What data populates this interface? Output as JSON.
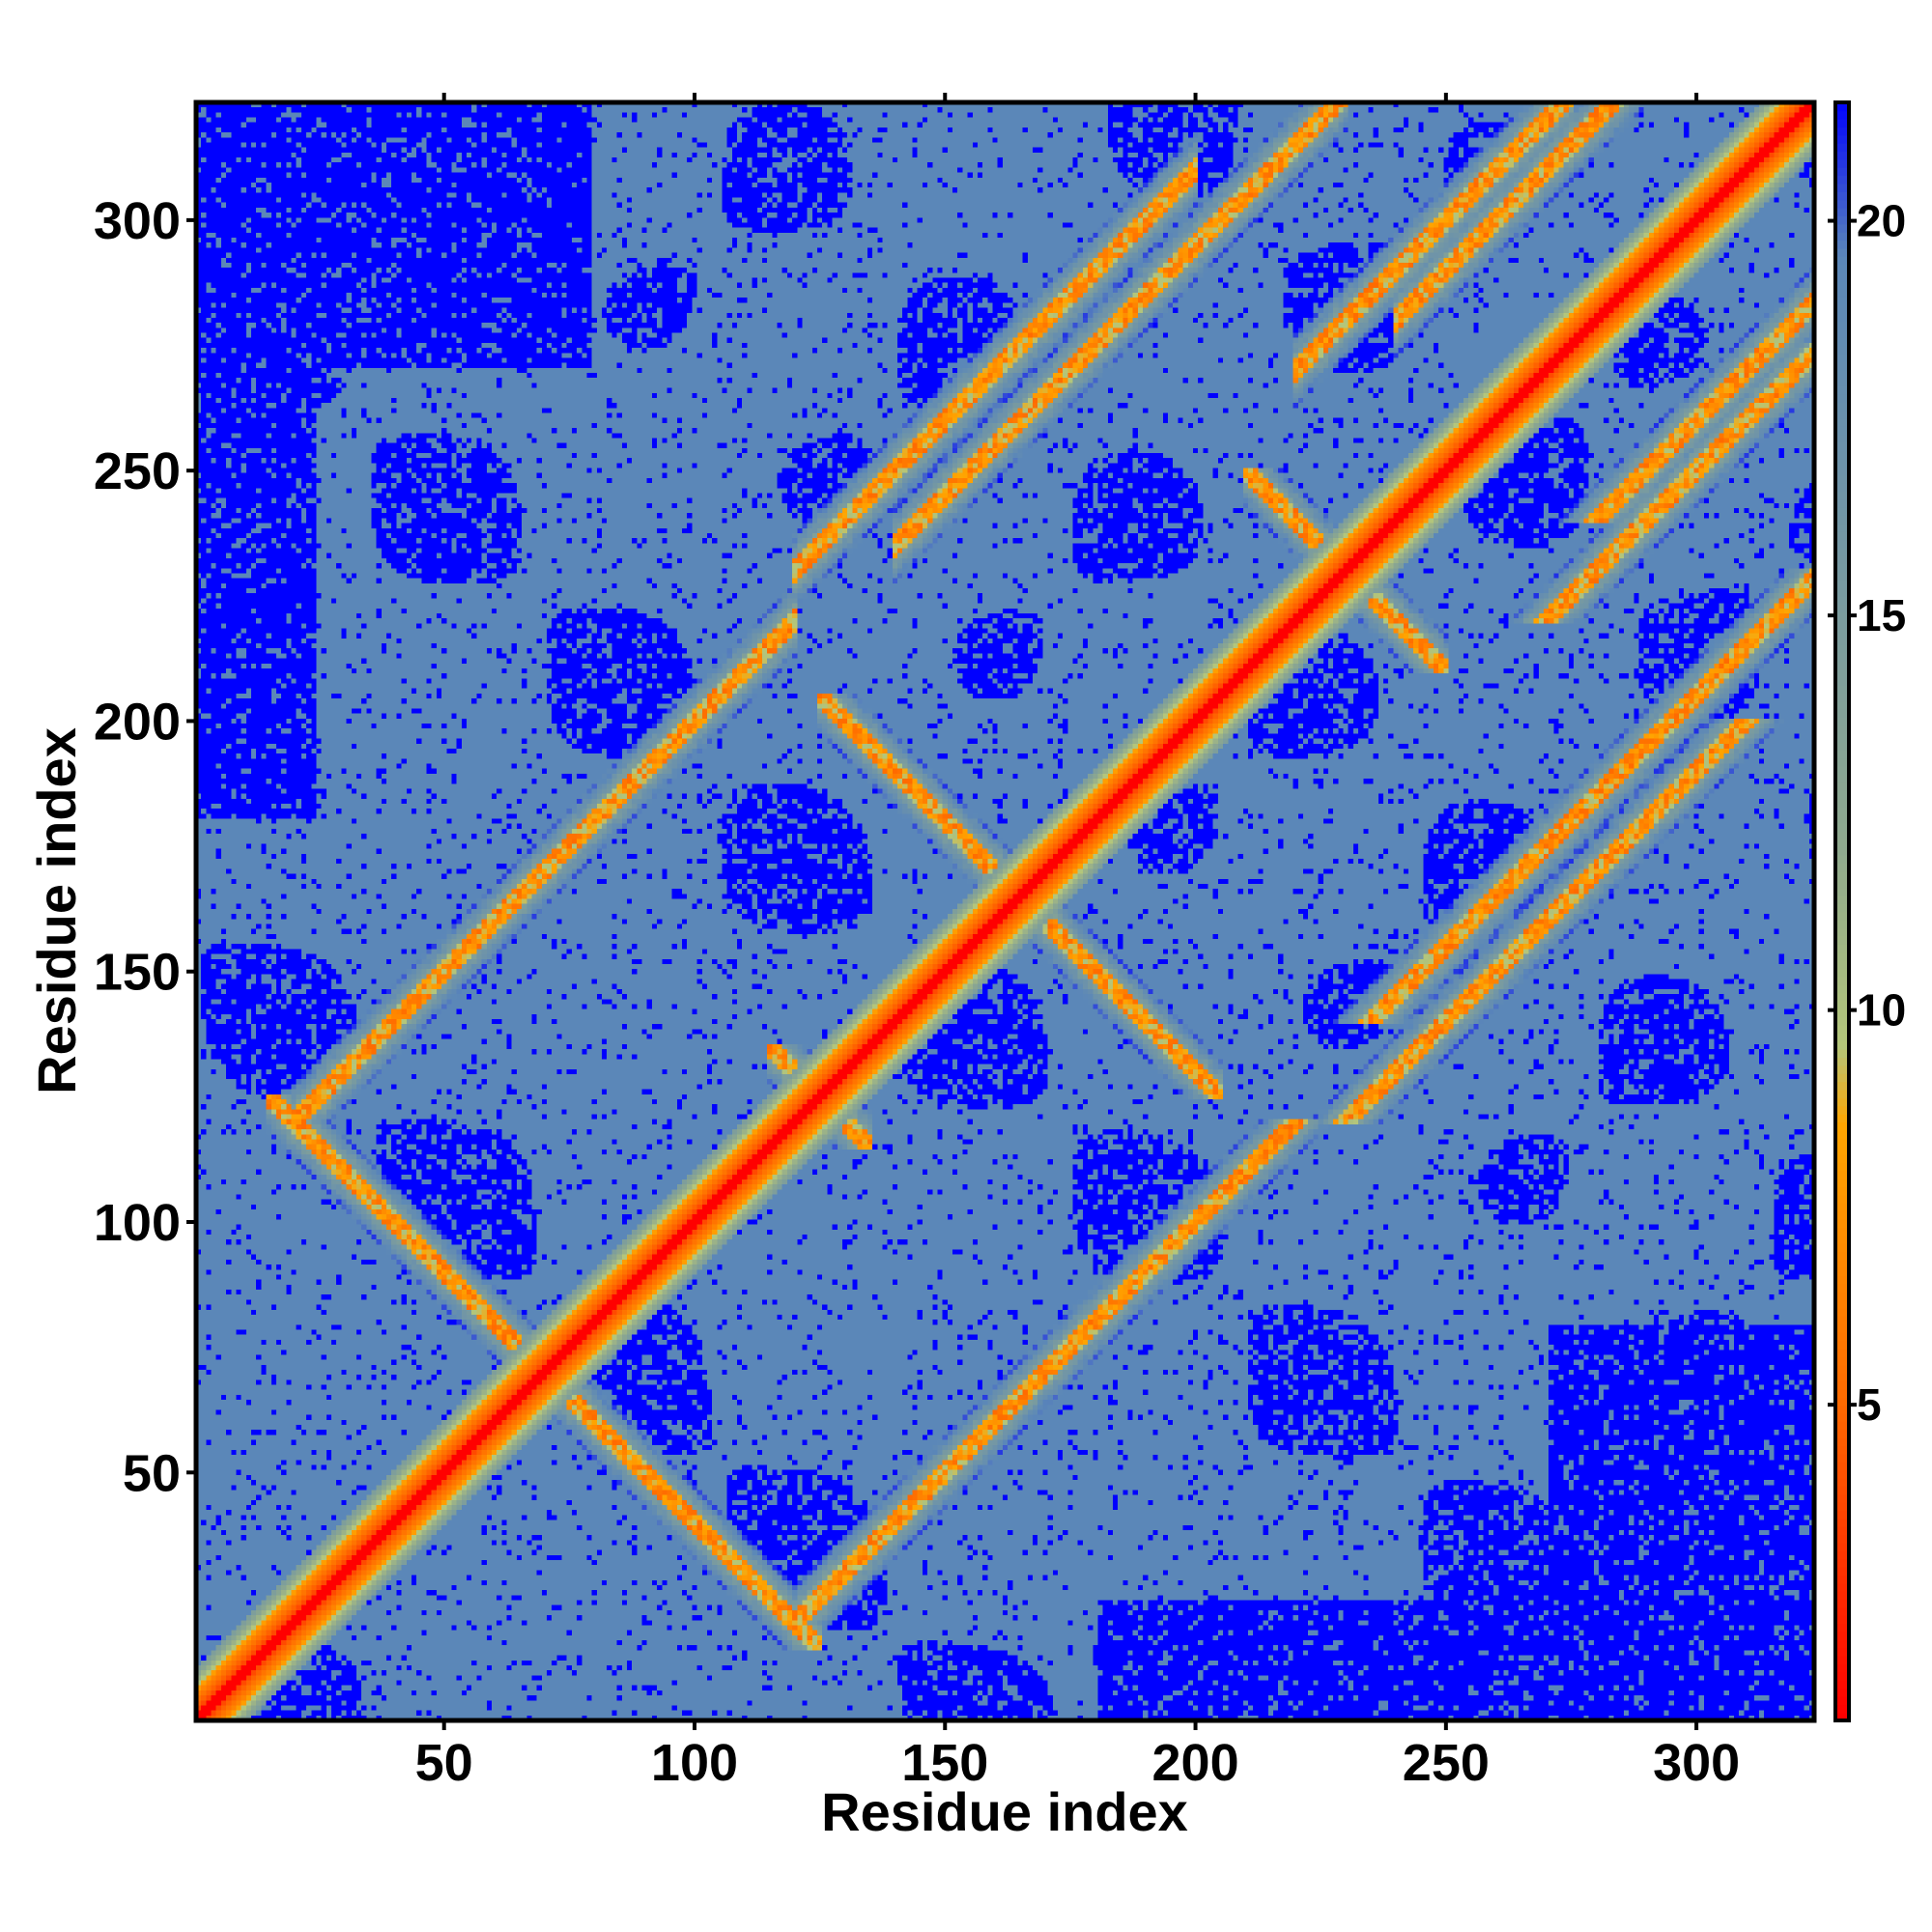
{
  "chart_data": {
    "type": "heatmap",
    "title": "",
    "xlabel": "Residue index",
    "ylabel": "Residue index",
    "xlim": [
      1,
      323
    ],
    "ylim": [
      1,
      323
    ],
    "x_ticks": [
      50,
      100,
      150,
      200,
      250,
      300
    ],
    "y_ticks": [
      50,
      100,
      150,
      200,
      250,
      300
    ],
    "colorbar": {
      "range": [
        1,
        21.5
      ],
      "ticks": [
        5,
        10,
        15,
        20
      ],
      "colors": [
        {
          "value": 1,
          "color": "#ff0000"
        },
        {
          "value": 5,
          "color": "#ff6a00"
        },
        {
          "value": 8.5,
          "color": "#ffa500"
        },
        {
          "value": 9.5,
          "color": "#b4c67a"
        },
        {
          "value": 12,
          "color": "#8fa98e"
        },
        {
          "value": 19.5,
          "color": "#5b87b8"
        },
        {
          "value": 21.5,
          "color": "#0000ff"
        }
      ]
    },
    "diagonal_value": 1,
    "background_value": 21.5,
    "description_values": {
      "contact_max": 20,
      "far_value": 21.5
    }
  }
}
